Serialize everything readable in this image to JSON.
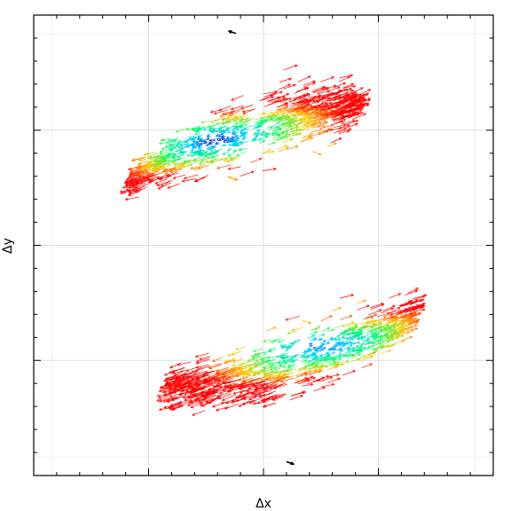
{
  "chart_data": {
    "type": "vector-field",
    "title": "",
    "xlabel": "Δx",
    "ylabel": "Δy",
    "xlim": [
      -1,
      1
    ],
    "ylim": [
      -1,
      1
    ],
    "grid": true,
    "legend": "none",
    "color_scale": [
      "#0000cc",
      "#00ccff",
      "#00ff66",
      "#ffcc00",
      "#ff0000"
    ],
    "clusters": [
      {
        "center": [
          -0.05,
          0.45
        ],
        "extent": [
          -0.55,
          0.4
        ],
        "peak": [
          -0.2,
          0.46
        ],
        "direction": [
          1.0,
          0.34
        ]
      },
      {
        "center": [
          0.15,
          -0.45
        ],
        "extent": [
          -0.4,
          0.65
        ],
        "peak": [
          0.2,
          -0.43
        ],
        "direction": [
          1.0,
          0.34
        ]
      }
    ],
    "outlier_arrows": [
      {
        "x": -0.12,
        "y": 0.92,
        "dx": -0.03,
        "dy": 0.01
      },
      {
        "x": 0.1,
        "y": -0.94,
        "dx": 0.03,
        "dy": -0.01
      }
    ]
  }
}
